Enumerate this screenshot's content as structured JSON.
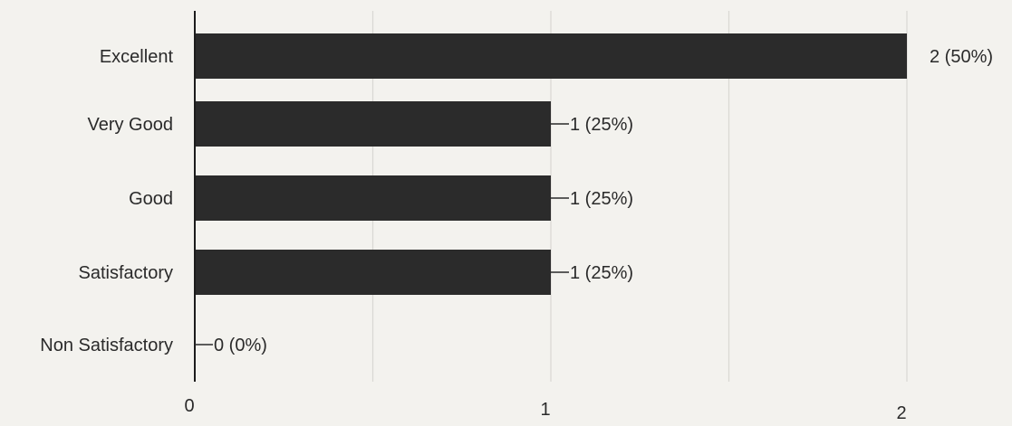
{
  "chart_data": {
    "type": "bar",
    "orientation": "horizontal",
    "categories": [
      "Excellent",
      "Very Good",
      "Good",
      "Satisfactory",
      "Non Satisfactory"
    ],
    "values": [
      2,
      1,
      1,
      1,
      0
    ],
    "data_labels": [
      "2 (50%)",
      "1 (25%)",
      "1 (25%)",
      "1 (25%)",
      "0 (0%)"
    ],
    "xlim": [
      0,
      2
    ],
    "x_ticks": [
      0,
      1,
      2
    ],
    "x_tick_labels": [
      "0",
      "1",
      "2"
    ],
    "grid": true,
    "title": "",
    "xlabel": "",
    "ylabel": "",
    "bar_color": "#2b2b2b"
  }
}
